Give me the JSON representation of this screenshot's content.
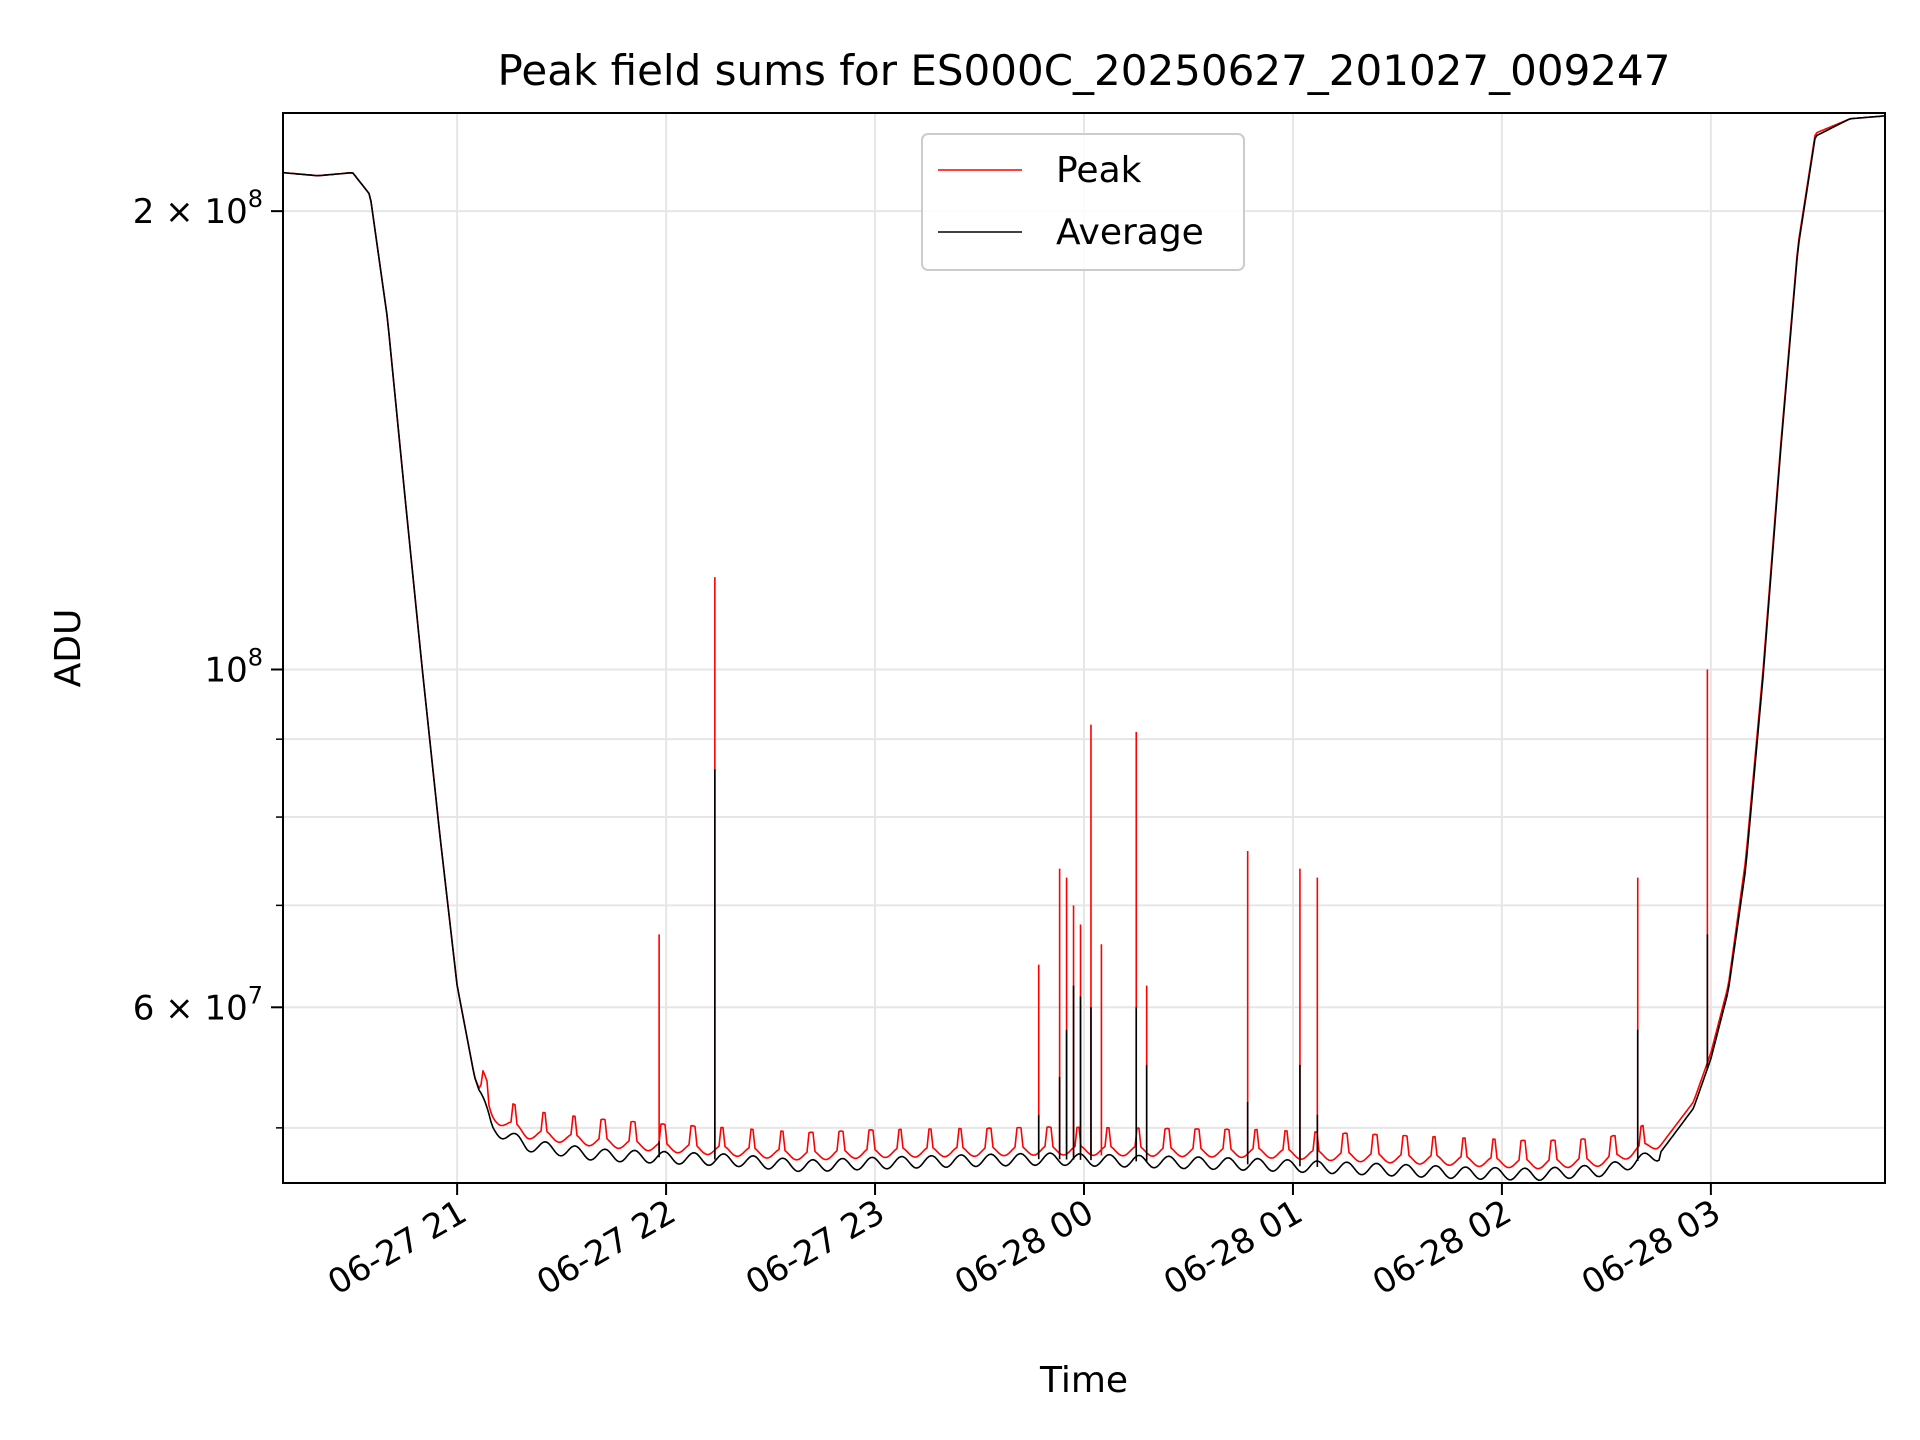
{
  "chart_data": {
    "type": "line",
    "title": "Peak field sums for ES000C_20250627_201027_009247",
    "xlabel": "Time",
    "ylabel": "ADU",
    "y_scale": "log",
    "ylim": [
      46000000,
      232000000
    ],
    "xlim": [
      "2025-06-27 20:10",
      "2025-06-28 03:50"
    ],
    "grid": true,
    "legend_placement": "upper-center",
    "x_ticks": [
      {
        "x": "2025-06-27 21:00",
        "label": "06-27 21"
      },
      {
        "x": "2025-06-27 22:00",
        "label": "06-27 22"
      },
      {
        "x": "2025-06-27 23:00",
        "label": "06-27 23"
      },
      {
        "x": "2025-06-28 00:00",
        "label": "06-28 00"
      },
      {
        "x": "2025-06-28 01:00",
        "label": "06-28 01"
      },
      {
        "x": "2025-06-28 02:00",
        "label": "06-28 02"
      },
      {
        "x": "2025-06-28 03:00",
        "label": "06-28 03"
      }
    ],
    "y_major_ticks": [
      {
        "value": 60000000,
        "label_base": "6 × 10",
        "label_exp": "7"
      },
      {
        "value": 100000000,
        "label_base": "10",
        "label_exp": "8"
      },
      {
        "value": 200000000,
        "label_base": "2 × 10",
        "label_exp": "8"
      }
    ],
    "y_minor_ticks": [
      50000000,
      70000000,
      80000000,
      90000000
    ],
    "series": [
      {
        "name": "Peak",
        "color": "#ff0000",
        "baseline": [
          [
            "2025-06-27 20:10",
            212000000
          ],
          [
            "2025-06-27 20:20",
            211000000
          ],
          [
            "2025-06-27 20:30",
            212000000
          ],
          [
            "2025-06-27 20:35",
            205000000
          ],
          [
            "2025-06-27 20:40",
            170000000
          ],
          [
            "2025-06-27 20:45",
            130000000
          ],
          [
            "2025-06-27 20:50",
            100000000
          ],
          [
            "2025-06-27 20:55",
            78000000
          ],
          [
            "2025-06-27 21:00",
            62000000
          ],
          [
            "2025-06-27 21:05",
            54000000
          ],
          [
            "2025-06-27 21:10",
            50500000
          ],
          [
            "2025-06-27 21:20",
            49200000
          ],
          [
            "2025-06-27 21:40",
            48600000
          ],
          [
            "2025-06-27 22:00",
            48200000
          ],
          [
            "2025-06-27 22:20",
            47900000
          ],
          [
            "2025-06-27 22:40",
            47600000
          ],
          [
            "2025-06-27 23:00",
            47800000
          ],
          [
            "2025-06-27 23:30",
            47900000
          ],
          [
            "2025-06-27 23:50",
            48000000
          ],
          [
            "2025-06-28 00:20",
            47900000
          ],
          [
            "2025-06-28 00:50",
            47800000
          ],
          [
            "2025-06-28 01:20",
            47500000
          ],
          [
            "2025-06-28 01:50",
            47200000
          ],
          [
            "2025-06-28 02:10",
            47000000
          ],
          [
            "2025-06-28 02:30",
            47200000
          ],
          [
            "2025-06-28 02:45",
            48500000
          ],
          [
            "2025-06-28 02:55",
            52000000
          ],
          [
            "2025-06-28 03:00",
            56000000
          ],
          [
            "2025-06-28 03:05",
            62000000
          ],
          [
            "2025-06-28 03:10",
            75000000
          ],
          [
            "2025-06-28 03:15",
            100000000
          ],
          [
            "2025-06-28 03:20",
            140000000
          ],
          [
            "2025-06-28 03:25",
            190000000
          ],
          [
            "2025-06-28 03:30",
            225000000
          ],
          [
            "2025-06-28 03:40",
            230000000
          ],
          [
            "2025-06-28 03:50",
            231000000
          ]
        ],
        "spikes": [
          [
            "2025-06-27 21:58",
            67000000
          ],
          [
            "2025-06-27 22:14",
            115000000
          ],
          [
            "2025-06-27 23:47",
            64000000
          ],
          [
            "2025-06-27 23:53",
            74000000
          ],
          [
            "2025-06-27 23:55",
            73000000
          ],
          [
            "2025-06-27 23:57",
            70000000
          ],
          [
            "2025-06-27 23:59",
            68000000
          ],
          [
            "2025-06-28 00:02",
            92000000
          ],
          [
            "2025-06-28 00:05",
            66000000
          ],
          [
            "2025-06-28 00:15",
            91000000
          ],
          [
            "2025-06-28 00:18",
            62000000
          ],
          [
            "2025-06-28 00:47",
            76000000
          ],
          [
            "2025-06-28 01:02",
            74000000
          ],
          [
            "2025-06-28 01:07",
            73000000
          ],
          [
            "2025-06-28 02:39",
            73000000
          ],
          [
            "2025-06-28 02:59",
            100000000
          ]
        ]
      },
      {
        "name": "Average",
        "color": "#000000",
        "baseline": [
          [
            "2025-06-27 20:10",
            212000000
          ],
          [
            "2025-06-27 20:20",
            211000000
          ],
          [
            "2025-06-27 20:30",
            212000000
          ],
          [
            "2025-06-27 20:35",
            205000000
          ],
          [
            "2025-06-27 20:40",
            170000000
          ],
          [
            "2025-06-27 20:45",
            130000000
          ],
          [
            "2025-06-27 20:50",
            100000000
          ],
          [
            "2025-06-27 20:55",
            78000000
          ],
          [
            "2025-06-27 21:00",
            62000000
          ],
          [
            "2025-06-27 21:05",
            54000000
          ],
          [
            "2025-06-27 21:10",
            50000000
          ],
          [
            "2025-06-27 21:20",
            48700000
          ],
          [
            "2025-06-27 21:40",
            48000000
          ],
          [
            "2025-06-27 22:00",
            47800000
          ],
          [
            "2025-06-27 22:20",
            47600000
          ],
          [
            "2025-06-27 22:40",
            47200000
          ],
          [
            "2025-06-27 23:00",
            47400000
          ],
          [
            "2025-06-27 23:30",
            47600000
          ],
          [
            "2025-06-27 23:50",
            47700000
          ],
          [
            "2025-06-28 00:20",
            47500000
          ],
          [
            "2025-06-28 00:50",
            47300000
          ],
          [
            "2025-06-28 01:20",
            47000000
          ],
          [
            "2025-06-28 01:50",
            46700000
          ],
          [
            "2025-06-28 02:10",
            46600000
          ],
          [
            "2025-06-28 02:30",
            46900000
          ],
          [
            "2025-06-28 02:45",
            48000000
          ],
          [
            "2025-06-28 02:55",
            51500000
          ],
          [
            "2025-06-28 03:00",
            55500000
          ],
          [
            "2025-06-28 03:05",
            61500000
          ],
          [
            "2025-06-28 03:10",
            74000000
          ],
          [
            "2025-06-28 03:15",
            99000000
          ],
          [
            "2025-06-28 03:20",
            139000000
          ],
          [
            "2025-06-28 03:25",
            189000000
          ],
          [
            "2025-06-28 03:30",
            224000000
          ],
          [
            "2025-06-28 03:40",
            230000000
          ],
          [
            "2025-06-28 03:50",
            231000000
          ]
        ],
        "spikes": [
          [
            "2025-06-27 21:58",
            49000000
          ],
          [
            "2025-06-27 22:14",
            86000000
          ],
          [
            "2025-06-27 23:47",
            51000000
          ],
          [
            "2025-06-27 23:53",
            54000000
          ],
          [
            "2025-06-27 23:55",
            58000000
          ],
          [
            "2025-06-27 23:57",
            62000000
          ],
          [
            "2025-06-27 23:59",
            61000000
          ],
          [
            "2025-06-28 00:02",
            60000000
          ],
          [
            "2025-06-28 00:15",
            60000000
          ],
          [
            "2025-06-28 00:18",
            55000000
          ],
          [
            "2025-06-28 00:47",
            52000000
          ],
          [
            "2025-06-28 01:02",
            55000000
          ],
          [
            "2025-06-28 01:07",
            51000000
          ],
          [
            "2025-06-28 02:39",
            58000000
          ],
          [
            "2025-06-28 02:59",
            67000000
          ]
        ]
      }
    ]
  }
}
